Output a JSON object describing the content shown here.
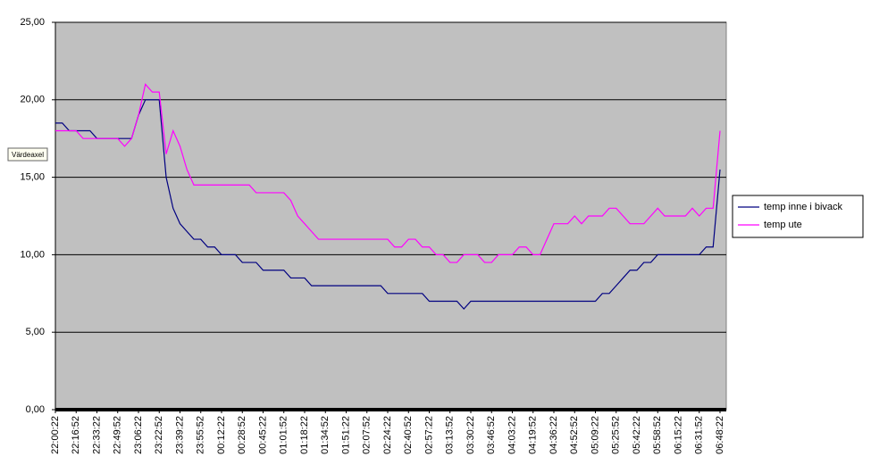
{
  "chart_data": {
    "type": "line",
    "y_label": "Värdeaxel",
    "categories": [
      "22:00:22",
      null,
      null,
      "22:16:52",
      null,
      null,
      "22:33:22",
      null,
      null,
      "22:49:52",
      null,
      null,
      "23:06:22",
      null,
      null,
      "23:22:52",
      null,
      null,
      "23:39:22",
      null,
      null,
      "23:55:52",
      null,
      null,
      "00:12:22",
      null,
      null,
      "00:28:52",
      null,
      null,
      "00:45:22",
      null,
      null,
      "01:01:52",
      null,
      null,
      "01:18:22",
      null,
      null,
      "01:34:52",
      null,
      null,
      "01:51:22",
      null,
      null,
      "02:07:52",
      null,
      null,
      "02:24:22",
      null,
      null,
      "02:40:52",
      null,
      null,
      "02:57:22",
      null,
      null,
      "03:13:52",
      null,
      null,
      "03:30:22",
      null,
      null,
      "03:46:52",
      null,
      null,
      "04:03:22",
      null,
      null,
      "04:19:52",
      null,
      null,
      "04:36:22",
      null,
      null,
      "04:52:52",
      null,
      null,
      "05:09:22",
      null,
      null,
      "05:25:52",
      null,
      null,
      "05:42:22",
      null,
      null,
      "05:58:52",
      null,
      null,
      "06:15:22",
      null,
      null,
      "06:31:52",
      null,
      null,
      "06:48:22"
    ],
    "series": [
      {
        "name": "temp inne i bivack",
        "color": "#000080",
        "values": [
          18.5,
          18.5,
          18,
          18,
          18,
          18,
          17.5,
          17.5,
          17.5,
          17.5,
          17.5,
          17.5,
          19,
          20,
          20,
          20,
          15,
          13,
          12,
          11.5,
          11,
          11,
          10.5,
          10.5,
          10,
          10,
          10,
          9.5,
          9.5,
          9.5,
          9,
          9,
          9,
          9,
          8.5,
          8.5,
          8.5,
          8,
          8,
          8,
          8,
          8,
          8,
          8,
          8,
          8,
          8,
          8,
          7.5,
          7.5,
          7.5,
          7.5,
          7.5,
          7.5,
          7,
          7,
          7,
          7,
          7,
          6.5,
          7,
          7,
          7,
          7,
          7,
          7,
          7,
          7,
          7,
          7,
          7,
          7,
          7,
          7,
          7,
          7,
          7,
          7,
          7,
          7.5,
          7.5,
          8,
          8.5,
          9,
          9,
          9.5,
          9.5,
          10,
          10,
          10,
          10,
          10,
          10,
          10,
          10.5,
          10.5,
          15.5
        ]
      },
      {
        "name": "temp ute",
        "color": "#ff00ff",
        "values": [
          18,
          18,
          18,
          18,
          17.5,
          17.5,
          17.5,
          17.5,
          17.5,
          17.5,
          17,
          17.5,
          19,
          21,
          20.5,
          20.5,
          16.5,
          18,
          17,
          15.5,
          14.5,
          14.5,
          14.5,
          14.5,
          14.5,
          14.5,
          14.5,
          14.5,
          14.5,
          14,
          14,
          14,
          14,
          14,
          13.5,
          12.5,
          12,
          11.5,
          11,
          11,
          11,
          11,
          11,
          11,
          11,
          11,
          11,
          11,
          11,
          10.5,
          10.5,
          11,
          11,
          10.5,
          10.5,
          10,
          10,
          9.5,
          9.5,
          10,
          10,
          10,
          9.5,
          9.5,
          10,
          10,
          10,
          10.5,
          10.5,
          10,
          10,
          11,
          12,
          12,
          12,
          12.5,
          12,
          12.5,
          12.5,
          12.5,
          13,
          13,
          12.5,
          12,
          12,
          12,
          12.5,
          13,
          12.5,
          12.5,
          12.5,
          12.5,
          13,
          12.5,
          13,
          13,
          18
        ]
      }
    ],
    "ylim": [
      0,
      25
    ],
    "yticks": [
      {
        "value": 0,
        "label": "0,00"
      },
      {
        "value": 5,
        "label": "5,00"
      },
      {
        "value": 10,
        "label": "10,00"
      },
      {
        "value": 15,
        "label": "15,00"
      },
      {
        "value": 20,
        "label": "20,00"
      },
      {
        "value": 25,
        "label": "25,00"
      }
    ],
    "grid": true,
    "legend": "right"
  }
}
